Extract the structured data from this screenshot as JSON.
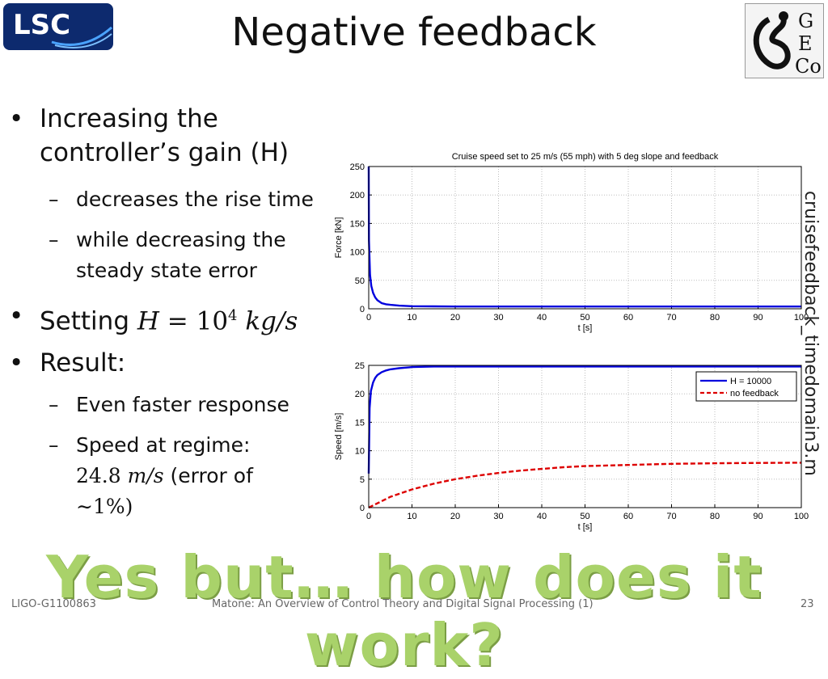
{
  "slide": {
    "title": "Negative feedback",
    "side_note": "cruisefeedback_timedomain3.m",
    "tagline": "Yes but… how does it work?",
    "footer_left": "LIGO-G1100863",
    "footer_center": "Matone: An Overview of Control Theory and Digital Signal Processing (1)",
    "footer_right": "23",
    "logo_lsc_text": "LSC",
    "logo_geco_text": [
      "G",
      "E",
      "Co"
    ]
  },
  "bullets": {
    "b1_line1": "Increasing the",
    "b1_line2": "controller’s gain (H)",
    "b1_sub1": "decreases the rise time",
    "b1_sub2_line1": "while decreasing the",
    "b1_sub2_line2": "steady state error",
    "b2_prefix": "Setting",
    "b2_math_H": "H",
    "b2_math_eq": "= 10",
    "b2_math_exp": "4",
    "b2_math_unit": "kg/s",
    "b3": "Result:",
    "b3_sub1": "Even faster response",
    "b3_sub2_line1": "Speed at regime:",
    "b3_sub2_val": "24.8",
    "b3_sub2_unit": "m/s",
    "b3_sub2_rest": "(error of",
    "b3_sub2_line3": "∼1%)",
    "bullet_glyph": "•",
    "dash_glyph": "–"
  },
  "chart_data": [
    {
      "type": "line",
      "title": "Cruise speed set to 25 m/s (55 mph) with 5 deg slope and feedback",
      "xlabel": "t [s]",
      "ylabel": "Force [kN]",
      "xlim": [
        0,
        100
      ],
      "ylim": [
        0,
        250
      ],
      "xticks": [
        0,
        10,
        20,
        30,
        40,
        50,
        60,
        70,
        80,
        90,
        100
      ],
      "yticks": [
        0,
        50,
        100,
        150,
        200,
        250
      ],
      "grid": true,
      "series": [
        {
          "color": "#0000dd",
          "x": [
            0,
            0.05,
            0.3,
            0.6,
            1,
            1.5,
            2,
            3,
            4,
            5,
            7,
            10,
            15,
            20,
            30,
            50,
            100
          ],
          "y": [
            250,
            120,
            60,
            40,
            28,
            20,
            15,
            10,
            8,
            7,
            5.5,
            4.5,
            4.2,
            4,
            4,
            4,
            4
          ]
        }
      ]
    },
    {
      "type": "line",
      "title": "",
      "xlabel": "t [s]",
      "ylabel": "Speed [m/s]",
      "xlim": [
        0,
        100
      ],
      "ylim": [
        0,
        25
      ],
      "xticks": [
        0,
        10,
        20,
        30,
        40,
        50,
        60,
        70,
        80,
        90,
        100
      ],
      "yticks": [
        0,
        5,
        10,
        15,
        20,
        25
      ],
      "grid": true,
      "legend": "top-right",
      "series": [
        {
          "name": "H = 10000",
          "color": "#0000dd",
          "dash": false,
          "x": [
            0,
            0.2,
            0.5,
            1,
            1.5,
            2,
            3,
            4,
            5,
            7,
            10,
            15,
            20,
            30,
            50,
            100
          ],
          "y": [
            6,
            17.5,
            20.5,
            22,
            22.8,
            23.3,
            23.8,
            24.1,
            24.3,
            24.5,
            24.7,
            24.8,
            24.8,
            24.8,
            24.8,
            24.8
          ]
        },
        {
          "name": "no feedback",
          "color": "#dd0000",
          "dash": true,
          "x": [
            0,
            5,
            10,
            15,
            20,
            25,
            30,
            35,
            40,
            45,
            50,
            60,
            70,
            80,
            90,
            100
          ],
          "y": [
            0,
            1.9,
            3.2,
            4.2,
            5.0,
            5.6,
            6.1,
            6.5,
            6.8,
            7.1,
            7.3,
            7.5,
            7.7,
            7.8,
            7.85,
            7.9
          ]
        }
      ]
    }
  ]
}
